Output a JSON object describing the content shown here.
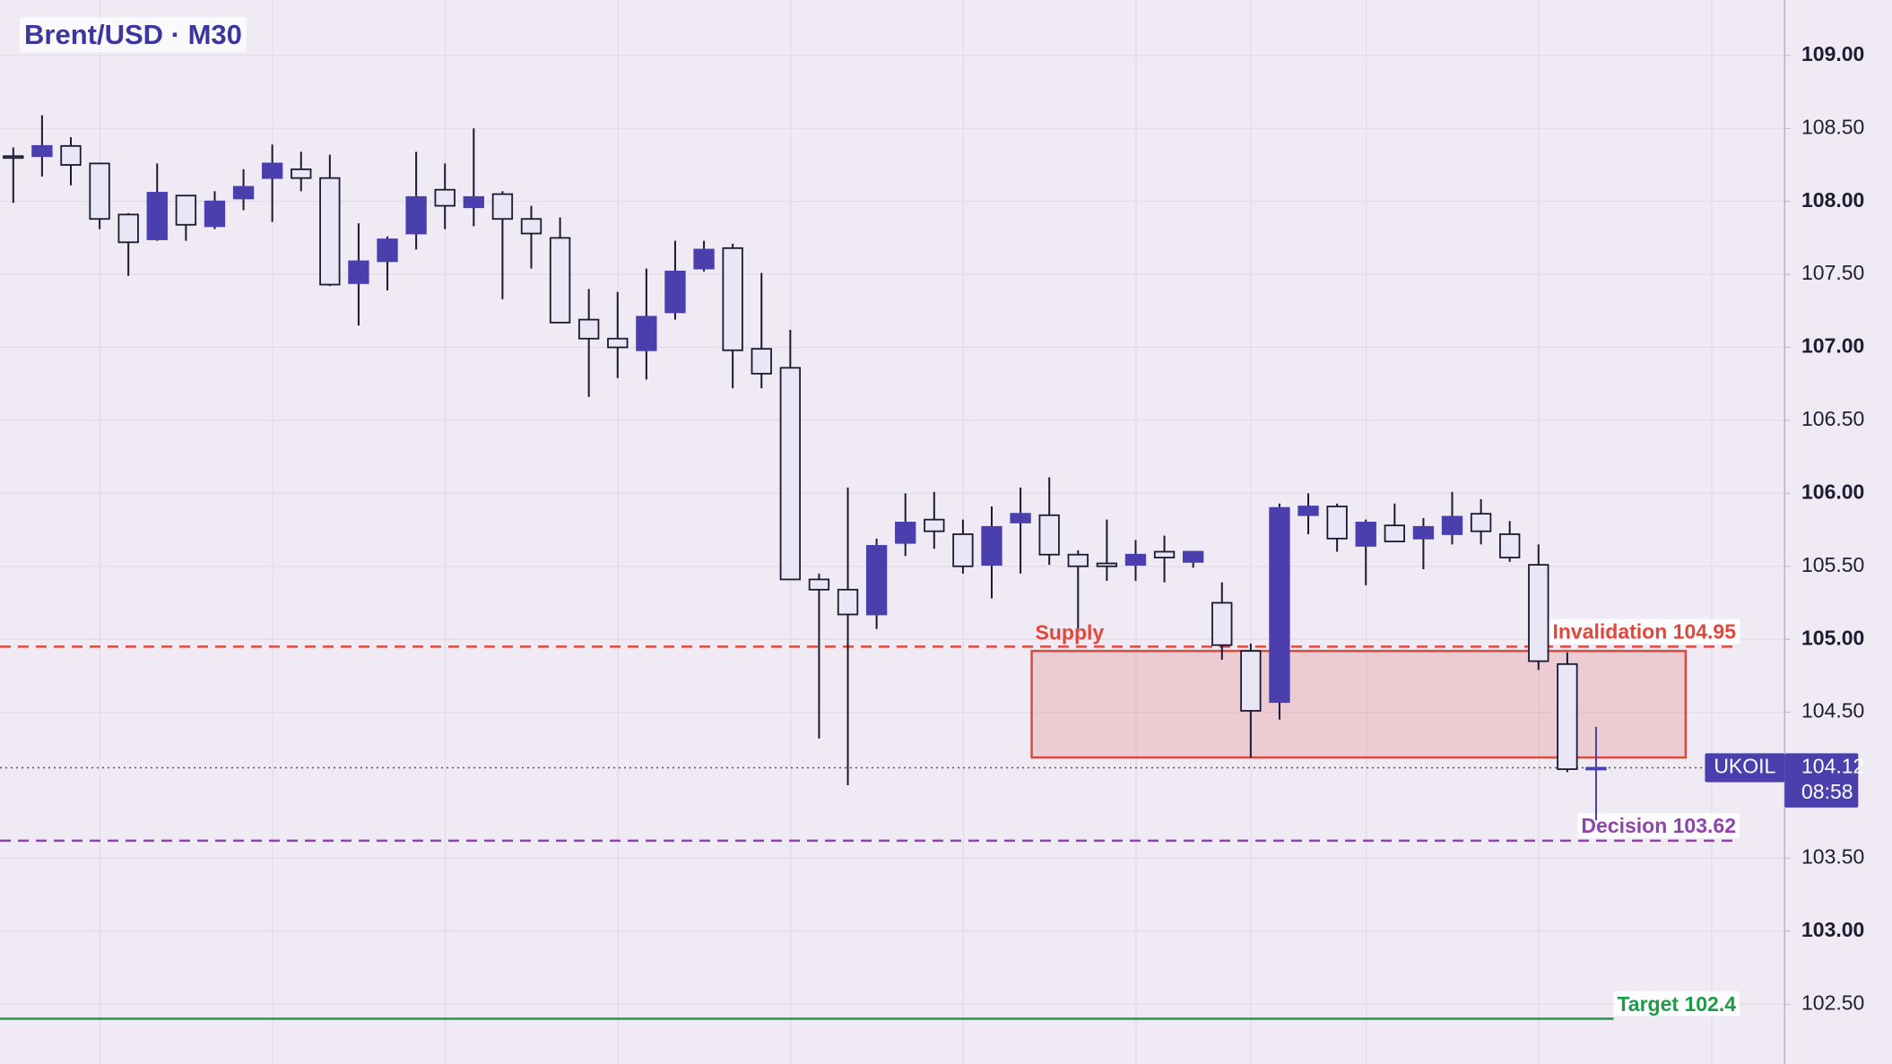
{
  "chart_data": {
    "type": "candlestick",
    "title": "Brent/USD · M30",
    "categories": [
      null,
      null,
      null,
      null,
      null,
      null,
      null,
      null,
      null,
      null,
      null,
      null,
      null,
      null,
      null,
      null,
      null,
      null,
      null,
      null,
      null,
      null,
      null,
      null,
      null,
      null,
      null,
      null,
      null,
      null,
      null,
      null,
      null,
      null,
      null,
      null,
      null,
      null,
      null,
      null,
      null,
      null,
      null,
      null,
      null,
      null,
      null,
      null,
      null,
      null,
      null,
      null,
      null,
      null,
      null,
      null
    ],
    "open": [
      108.31,
      108.31,
      108.38,
      108.26,
      107.91,
      107.74,
      108.04,
      107.83,
      108.02,
      108.16,
      108.22,
      108.16,
      107.44,
      107.59,
      107.78,
      108.08,
      107.96,
      108.05,
      107.88,
      107.75,
      107.19,
      107.06,
      106.98,
      107.24,
      107.54,
      107.68,
      106.99,
      106.86,
      105.41,
      105.34,
      105.17,
      105.66,
      105.82,
      105.72,
      105.51,
      105.8,
      105.85,
      105.58,
      105.52,
      105.51,
      105.6,
      105.53,
      105.25,
      104.92,
      104.57,
      105.85,
      105.91,
      105.64,
      105.78,
      105.69,
      105.72,
      105.86,
      105.72,
      105.51,
      104.83,
      104.11
    ],
    "high": [
      108.37,
      108.59,
      108.44,
      108.26,
      107.92,
      108.26,
      108.04,
      108.07,
      108.22,
      108.39,
      108.34,
      108.32,
      107.85,
      107.76,
      108.34,
      108.26,
      108.5,
      108.07,
      107.97,
      107.89,
      107.4,
      107.38,
      107.54,
      107.73,
      107.73,
      107.71,
      107.51,
      107.12,
      105.45,
      106.04,
      105.69,
      106.0,
      106.01,
      105.82,
      105.91,
      106.04,
      106.11,
      105.61,
      105.82,
      105.68,
      105.71,
      105.6,
      105.39,
      104.97,
      105.93,
      106.0,
      105.93,
      105.82,
      105.93,
      105.83,
      106.01,
      105.96,
      105.81,
      105.65,
      104.91,
      104.4
    ],
    "low": [
      107.99,
      108.17,
      108.11,
      107.81,
      107.49,
      107.73,
      107.73,
      107.81,
      107.94,
      107.86,
      108.07,
      107.42,
      107.15,
      107.39,
      107.67,
      107.81,
      107.83,
      107.33,
      107.54,
      107.17,
      106.66,
      106.79,
      106.78,
      107.19,
      107.52,
      106.72,
      106.72,
      105.41,
      104.32,
      104.0,
      105.07,
      105.57,
      105.62,
      105.45,
      105.28,
      105.45,
      105.51,
      105.07,
      105.4,
      105.4,
      105.39,
      105.49,
      104.86,
      104.19,
      104.45,
      105.72,
      105.6,
      105.37,
      105.67,
      105.48,
      105.65,
      105.65,
      105.53,
      104.79,
      104.09,
      103.76
    ],
    "close": [
      108.3,
      108.38,
      108.25,
      107.88,
      107.72,
      108.06,
      107.84,
      108.0,
      108.1,
      108.26,
      108.16,
      107.43,
      107.59,
      107.74,
      108.03,
      107.97,
      108.03,
      107.88,
      107.78,
      107.17,
      107.06,
      107.0,
      107.21,
      107.52,
      107.67,
      106.98,
      106.82,
      105.41,
      105.34,
      105.17,
      105.64,
      105.8,
      105.74,
      105.5,
      105.77,
      105.86,
      105.58,
      105.5,
      105.5,
      105.58,
      105.56,
      105.6,
      104.96,
      104.51,
      105.9,
      105.91,
      105.69,
      105.8,
      105.67,
      105.77,
      105.84,
      105.74,
      105.56,
      104.85,
      104.11,
      104.12
    ],
    "up_color": "#4b3fae",
    "down_color": "#e9e7f6",
    "ylim": [
      102.09,
      109.38
    ],
    "yticks": [
      {
        "value": 109,
        "label": "109.00"
      },
      {
        "value": 108.5,
        "label": "108.50"
      },
      {
        "value": 108,
        "label": "108.00"
      },
      {
        "value": 107.5,
        "label": "107.50"
      },
      {
        "value": 107,
        "label": "107.00"
      },
      {
        "value": 106.5,
        "label": "106.50"
      },
      {
        "value": 106,
        "label": "106.00"
      },
      {
        "value": 105.5,
        "label": "105.50"
      },
      {
        "value": 105,
        "label": "105.00"
      },
      {
        "value": 104.5,
        "label": "104.50"
      },
      {
        "value": 103.5,
        "label": "103.50"
      },
      {
        "value": 103,
        "label": "103.00"
      },
      {
        "value": 102.5,
        "label": "102.50"
      }
    ],
    "grid": true,
    "levels": [
      {
        "label": "Invalidation 104.95",
        "value": 104.95,
        "color": "#e0483a",
        "style": "dashed"
      },
      {
        "label": "Decision 103.62",
        "value": 103.62,
        "color": "#8e44ad",
        "style": "dashed"
      },
      {
        "label": "Target 102.4",
        "value": 102.4,
        "color": "#1e9a48",
        "style": "solid"
      }
    ],
    "zone": {
      "label": "Supply",
      "top": 104.92,
      "bottom": 104.19,
      "color": "#e0483a"
    },
    "last_price": {
      "symbol": "UKOIL",
      "value": 104.12,
      "countdown": "08:58"
    }
  }
}
